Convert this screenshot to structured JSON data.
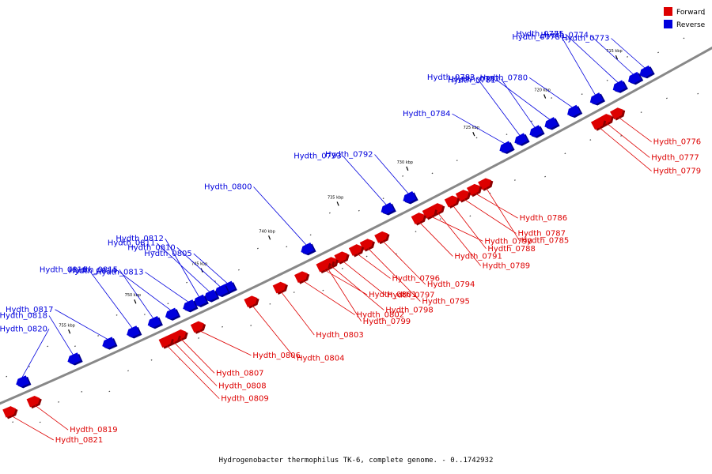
{
  "colors": {
    "forward": "#dd0000",
    "reverse": "#0000dd",
    "forward_dark": "#8a0000",
    "reverse_dark": "#00008a",
    "axis": "#888888"
  },
  "legend": {
    "forward_label": "Forward",
    "reverse_label": "Reverse"
  },
  "caption": "Hydrogenobacter thermophilus TK-6, complete genome. - 0..1742932",
  "kbp_ticks": [
    {
      "label": "715 kbp",
      "t": 0.89
    },
    {
      "label": "720 kbp",
      "t": 0.795
    },
    {
      "label": "725 kbp",
      "t": 0.7
    },
    {
      "label": "730 kbp",
      "t": 0.61
    },
    {
      "label": "735 kbp",
      "t": 0.515
    },
    {
      "label": "740 kbp",
      "t": 0.42
    },
    {
      "label": "745 kbp",
      "t": 0.325
    },
    {
      "label": "750 kbp",
      "t": 0.23
    },
    {
      "label": "755 kbp",
      "t": 0.135
    }
  ],
  "reverse_genes": [
    {
      "name": "Hydth_0773",
      "t": 0.91
    },
    {
      "name": "Hydth_0774",
      "t": 0.895
    },
    {
      "name": "Hydth_0775",
      "t": 0.875
    },
    {
      "name": "Hydth_0778",
      "t": 0.845
    },
    {
      "name": "Hydth_0780",
      "t": 0.815
    },
    {
      "name": "Hydth_0781",
      "t": 0.785
    },
    {
      "name": "Hydth_0782",
      "t": 0.765
    },
    {
      "name": "Hydth_0783",
      "t": 0.745
    },
    {
      "name": "Hydth_0784",
      "t": 0.725
    },
    {
      "name": "Hydth_0792",
      "t": 0.595
    },
    {
      "name": "Hydth_0793",
      "t": 0.565
    },
    {
      "name": "Hydth_0800",
      "t": 0.455
    },
    {
      "name": "Hydth_0805",
      "t": 0.345
    },
    {
      "name": "Hydth_0810",
      "t": 0.335
    },
    {
      "name": "Hydth_0811",
      "t": 0.32
    },
    {
      "name": "Hydth_0812",
      "t": 0.305
    },
    {
      "name": "Hydth_0813",
      "t": 0.29
    },
    {
      "name": "Hydth_0814",
      "t": 0.265
    },
    {
      "name": "Hydth_0815",
      "t": 0.24
    },
    {
      "name": "Hydth_0816",
      "t": 0.21
    },
    {
      "name": "Hydth_0817",
      "t": 0.175
    },
    {
      "name": "Hydth_0818",
      "t": 0.125
    },
    {
      "name": "Hydth_0820",
      "t": 0.05
    }
  ],
  "forward_genes": [
    {
      "name": "Hydth_0776",
      "t": 0.86
    },
    {
      "name": "Hydth_0777",
      "t": 0.845
    },
    {
      "name": "Hydth_0779",
      "t": 0.835
    },
    {
      "name": "Hydth_0785",
      "t": 0.685
    },
    {
      "name": "Hydth_0786",
      "t": 0.67
    },
    {
      "name": "Hydth_0787",
      "t": 0.655
    },
    {
      "name": "Hydth_0788",
      "t": 0.64
    },
    {
      "name": "Hydth_0789",
      "t": 0.62
    },
    {
      "name": "Hydth_0790",
      "t": 0.61
    },
    {
      "name": "Hydth_0791",
      "t": 0.595
    },
    {
      "name": "Hydth_0794",
      "t": 0.545
    },
    {
      "name": "Hydth_0795",
      "t": 0.525
    },
    {
      "name": "Hydth_0796",
      "t": 0.51
    },
    {
      "name": "Hydth_0797",
      "t": 0.49
    },
    {
      "name": "Hydth_0798",
      "t": 0.475
    },
    {
      "name": "Hydth_0799",
      "t": 0.47
    },
    {
      "name": "Hydth_0801",
      "t": 0.465
    },
    {
      "name": "Hydth_0802",
      "t": 0.435
    },
    {
      "name": "Hydth_0803",
      "t": 0.405
    },
    {
      "name": "Hydth_0804",
      "t": 0.365
    },
    {
      "name": "Hydth_0806",
      "t": 0.29
    },
    {
      "name": "Hydth_0807",
      "t": 0.265
    },
    {
      "name": "Hydth_0808",
      "t": 0.255
    },
    {
      "name": "Hydth_0809",
      "t": 0.245
    },
    {
      "name": "Hydth_0819",
      "t": 0.055
    },
    {
      "name": "Hydth_0821",
      "t": 0.02
    }
  ]
}
